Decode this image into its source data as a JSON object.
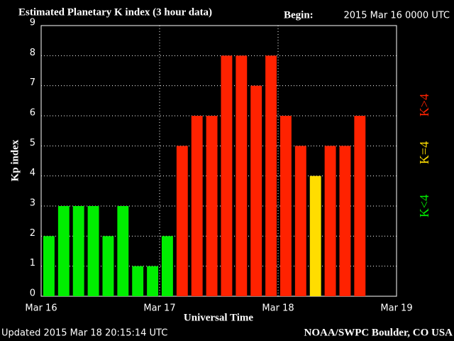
{
  "chart_data": {
    "type": "bar",
    "title": "Estimated Planetary K index (3 hour data)",
    "begin_label": "Begin:",
    "begin_value": "2015 Mar 16 0000 UTC",
    "ylabel": "Kp index",
    "xlabel": "Universal Time",
    "updated": "Updated 2015 Mar 18 20:15:14 UTC",
    "source": "NOAA/SWPC Boulder, CO USA",
    "x": [
      0,
      3,
      6,
      9,
      12,
      15,
      18,
      21,
      24,
      27,
      30,
      33,
      36,
      39,
      42,
      45,
      48,
      51,
      54,
      57,
      60,
      63
    ],
    "series": [
      {
        "name": "K<4",
        "color": "#00ee00",
        "values": [
          2,
          3,
          3,
          3,
          2,
          3,
          1,
          1,
          2,
          null,
          null,
          null,
          null,
          null,
          null,
          null,
          null,
          null,
          null,
          null,
          null,
          null
        ]
      },
      {
        "name": "K=4",
        "color": "#ffdd00",
        "values": [
          null,
          null,
          null,
          null,
          null,
          null,
          null,
          null,
          null,
          null,
          null,
          null,
          null,
          null,
          null,
          null,
          null,
          null,
          4,
          null,
          null,
          null
        ]
      },
      {
        "name": "K>4",
        "color": "#ff2200",
        "values": [
          null,
          null,
          null,
          null,
          null,
          null,
          null,
          null,
          null,
          5,
          6,
          6,
          8,
          8,
          7,
          8,
          6,
          5,
          null,
          5,
          5,
          6
        ]
      }
    ],
    "xlim": [
      0,
      72
    ],
    "xticks": [
      {
        "value": 0,
        "label": "Mar 16"
      },
      {
        "value": 24,
        "label": "Mar 17"
      },
      {
        "value": 48,
        "label": "Mar 18"
      },
      {
        "value": 72,
        "label": "Mar 19"
      }
    ],
    "ylim": [
      0,
      9
    ],
    "yticks": [
      0,
      1,
      2,
      3,
      4,
      5,
      6,
      7,
      8,
      9
    ],
    "grid": true
  }
}
